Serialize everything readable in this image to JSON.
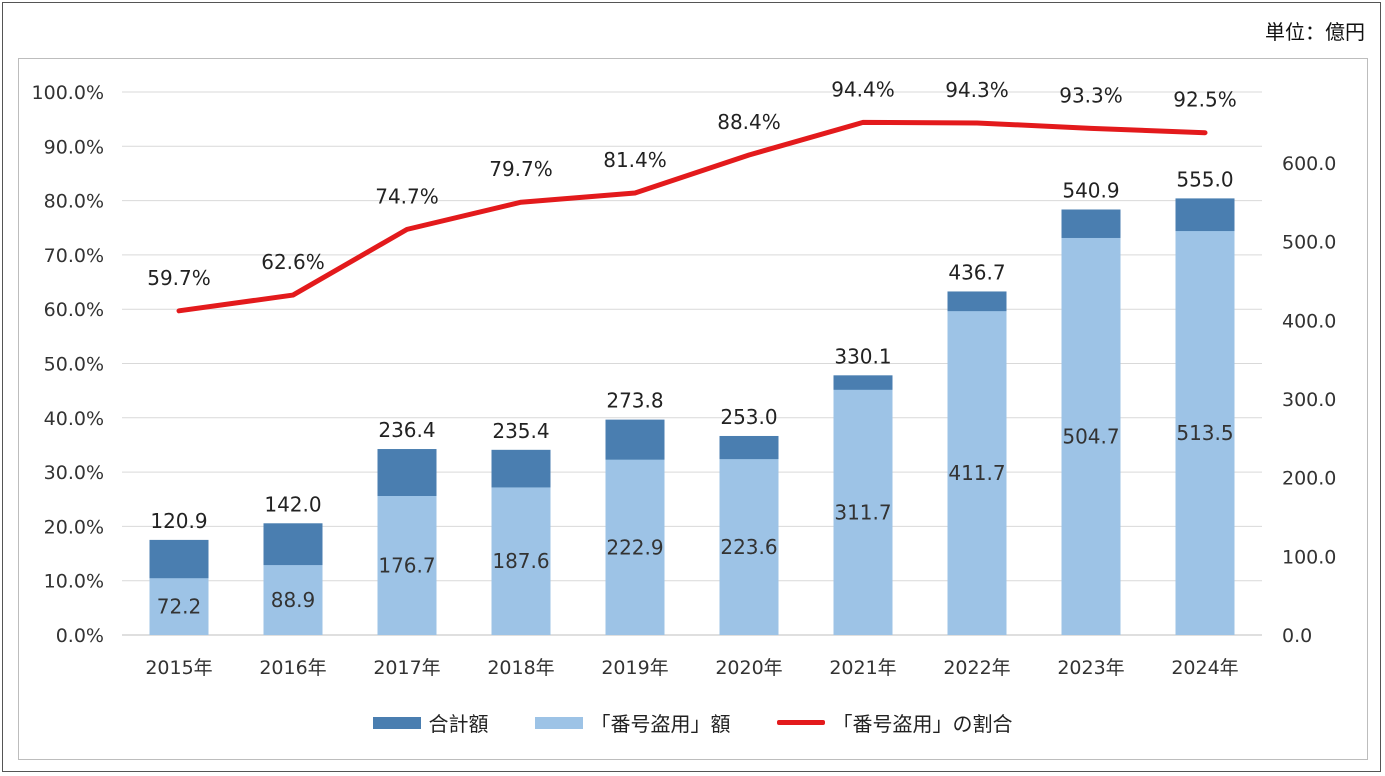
{
  "unit_label": "単位：億円",
  "colors": {
    "total": "#4a7eb0",
    "theft": "#9dc3e6",
    "ratio": "#e31a1c",
    "grid": "#d9d9d9"
  },
  "legend": {
    "total": "合計額",
    "theft": "「番号盗用」額",
    "ratio": "「番号盗用」の割合"
  },
  "chart_data": {
    "type": "bar",
    "categories": [
      "2015年",
      "2016年",
      "2017年",
      "2018年",
      "2019年",
      "2020年",
      "2021年",
      "2022年",
      "2023年",
      "2024年"
    ],
    "series": [
      {
        "name": "合計額",
        "kind": "bar-total",
        "axis": "right",
        "values": [
          120.9,
          142.0,
          236.4,
          235.4,
          273.8,
          253.0,
          330.1,
          436.7,
          540.9,
          555.0
        ],
        "labels": [
          "120.9",
          "142.0",
          "236.4",
          "235.4",
          "273.8",
          "253.0",
          "330.1",
          "436.7",
          "540.9",
          "555.0"
        ]
      },
      {
        "name": "「番号盗用」額",
        "kind": "bar-inner",
        "axis": "right",
        "values": [
          72.2,
          88.9,
          176.7,
          187.6,
          222.9,
          223.6,
          311.7,
          411.7,
          504.7,
          513.5
        ],
        "labels": [
          "72.2",
          "88.9",
          "176.7",
          "187.6",
          "222.9",
          "223.6",
          "311.7",
          "411.7",
          "504.7",
          "513.5"
        ]
      },
      {
        "name": "「番号盗用」の割合",
        "kind": "line",
        "axis": "left",
        "values": [
          59.7,
          62.6,
          74.7,
          79.7,
          81.4,
          88.4,
          94.4,
          94.3,
          93.3,
          92.5
        ],
        "labels": [
          "59.7%",
          "62.6%",
          "74.7%",
          "79.7%",
          "81.4%",
          "88.4%",
          "94.4%",
          "94.3%",
          "93.3%",
          "92.5%"
        ]
      }
    ],
    "y_left": {
      "ylim": [
        0,
        100
      ],
      "ticks": [
        0,
        10,
        20,
        30,
        40,
        50,
        60,
        70,
        80,
        90,
        100
      ],
      "tick_labels": [
        "0.0%",
        "10.0%",
        "20.0%",
        "30.0%",
        "40.0%",
        "50.0%",
        "60.0%",
        "70.0%",
        "80.0%",
        "90.0%",
        "100.0%"
      ]
    },
    "y_right": {
      "ylim": [
        0,
        690
      ],
      "ticks": [
        0,
        100,
        200,
        300,
        400,
        500,
        600
      ],
      "tick_labels": [
        "0.0",
        "100.0",
        "200.0",
        "300.0",
        "400.0",
        "500.0",
        "600.0"
      ]
    },
    "grid": true,
    "legend_position": "bottom"
  }
}
